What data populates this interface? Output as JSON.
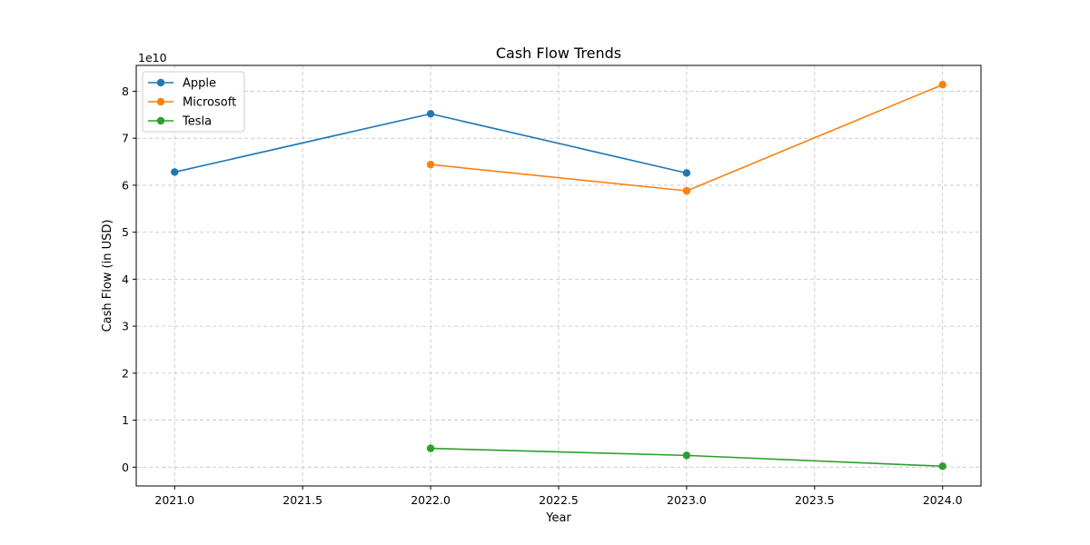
{
  "chart_data": {
    "type": "line",
    "title": "Cash Flow Trends",
    "xlabel": "Year",
    "ylabel": "Cash Flow (in USD)",
    "y_offset_label": "1e10",
    "xlim": [
      2020.85,
      2024.15
    ],
    "ylim": [
      -0.4,
      8.55
    ],
    "x_ticks": [
      2021.0,
      2021.5,
      2022.0,
      2022.5,
      2023.0,
      2023.5,
      2024.0
    ],
    "x_tick_labels": [
      "2021.0",
      "2021.5",
      "2022.0",
      "2022.5",
      "2023.0",
      "2023.5",
      "2024.0"
    ],
    "y_ticks": [
      0,
      1,
      2,
      3,
      4,
      5,
      6,
      7,
      8
    ],
    "y_tick_labels": [
      "0",
      "1",
      "2",
      "3",
      "4",
      "5",
      "6",
      "7",
      "8"
    ],
    "grid": true,
    "legend_position": "top-left",
    "series": [
      {
        "name": "Apple",
        "color": "#1f77b4",
        "x": [
          2021,
          2022,
          2023
        ],
        "y": [
          6.28,
          7.52,
          6.26
        ]
      },
      {
        "name": "Microsoft",
        "color": "#ff7f0e",
        "x": [
          2022,
          2023,
          2024
        ],
        "y": [
          6.44,
          5.88,
          8.14
        ]
      },
      {
        "name": "Tesla",
        "color": "#2ca02c",
        "x": [
          2022,
          2023,
          2024
        ],
        "y": [
          0.4,
          0.25,
          0.02
        ]
      }
    ]
  }
}
